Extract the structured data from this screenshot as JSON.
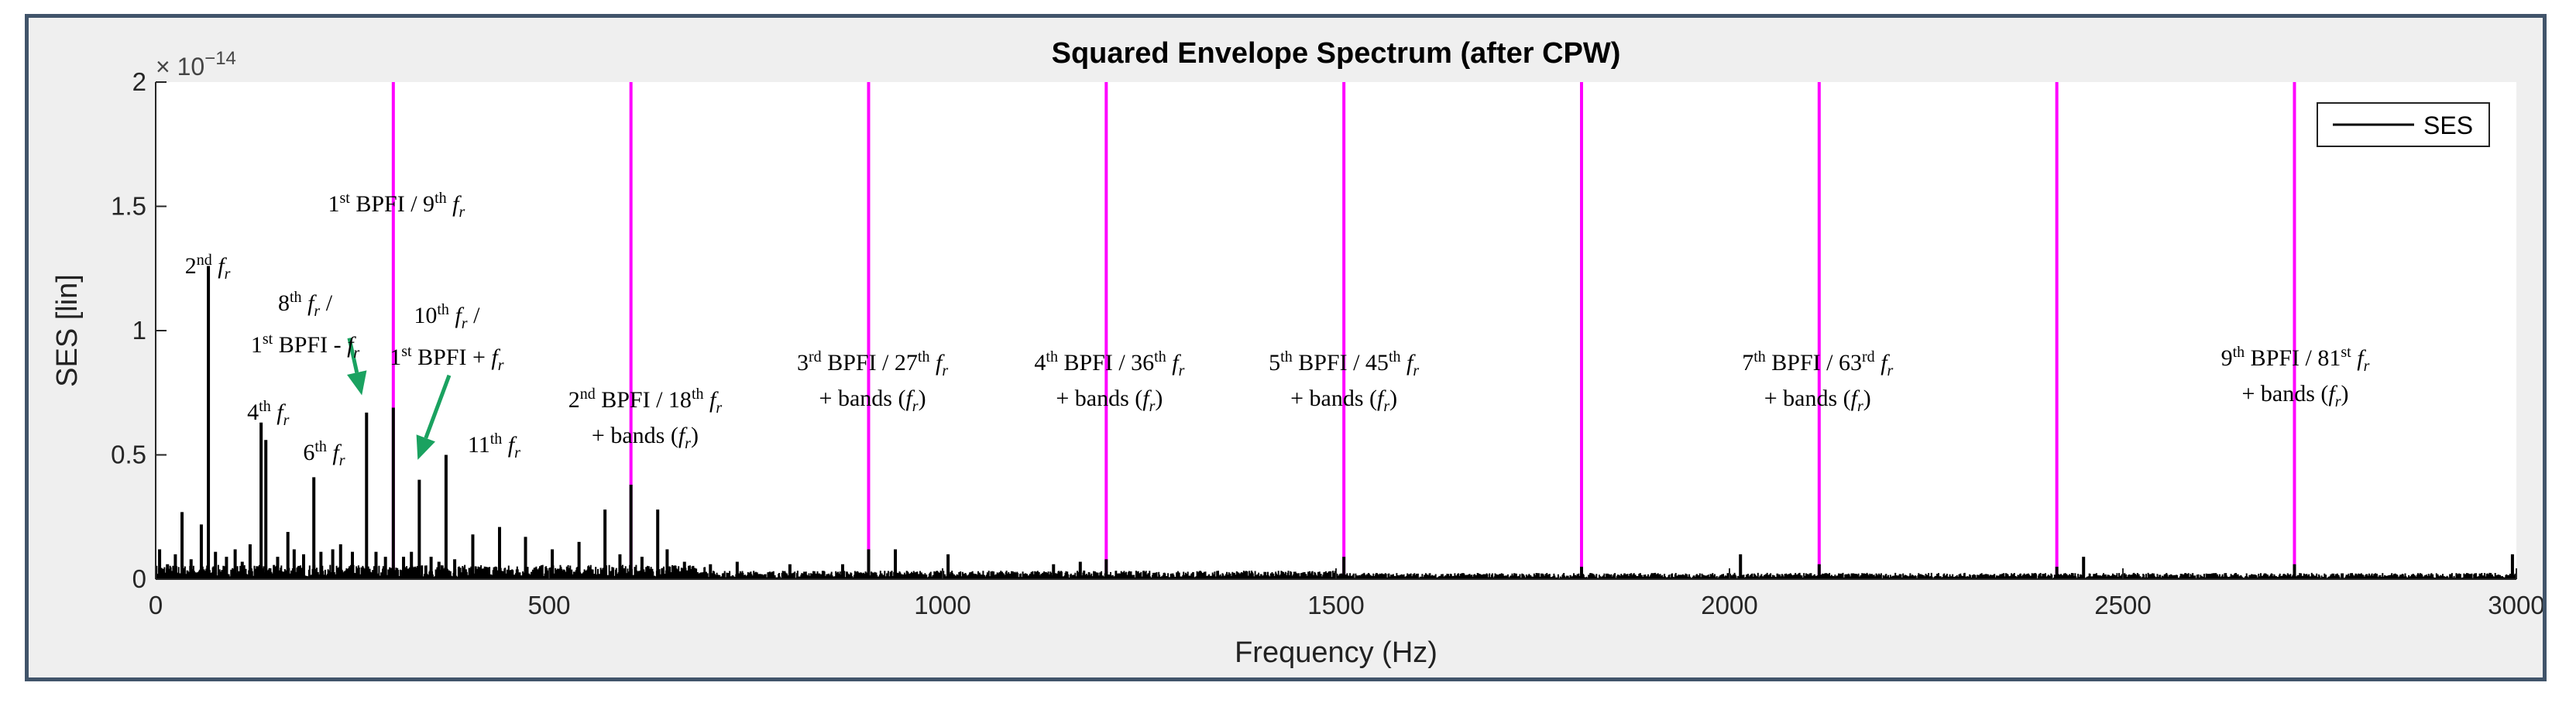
{
  "chart_data": {
    "type": "line",
    "title": "Squared Envelope Spectrum (after CPW)",
    "xlabel": "Frequency (Hz)",
    "ylabel": "SES [lin]",
    "y_exponent": "× 10",
    "y_exponent_power": "−14",
    "xlim": [
      0,
      3000
    ],
    "ylim": [
      0,
      2
    ],
    "x_ticks": [
      0,
      500,
      1000,
      1500,
      2000,
      2500,
      3000
    ],
    "y_ticks": [
      0,
      0.5,
      1,
      1.5,
      2
    ],
    "x_tick_labels": [
      "0",
      "500",
      "1000",
      "1500",
      "2000",
      "2500",
      "3000"
    ],
    "y_tick_labels": [
      "0",
      "0.5",
      "1",
      "1.5",
      "2"
    ],
    "legend": {
      "position": "top-right",
      "label": "SES"
    },
    "series_color": "#000000",
    "marker_color": "#ff00ff",
    "arrow_color": "#1aa260",
    "bpfi_markers_hz": [
      302,
      604,
      906,
      1208,
      1510,
      1812,
      2114,
      2416,
      2718
    ],
    "peaks": [
      {
        "x": 5,
        "y": 0.12
      },
      {
        "x": 15,
        "y": 0.06
      },
      {
        "x": 25,
        "y": 0.1
      },
      {
        "x": 33.5,
        "y": 0.27
      },
      {
        "x": 45,
        "y": 0.08
      },
      {
        "x": 58,
        "y": 0.22
      },
      {
        "x": 67,
        "y": 1.26
      },
      {
        "x": 76,
        "y": 0.11
      },
      {
        "x": 90,
        "y": 0.09
      },
      {
        "x": 101,
        "y": 0.12
      },
      {
        "x": 110,
        "y": 0.07
      },
      {
        "x": 120,
        "y": 0.14
      },
      {
        "x": 134,
        "y": 0.63
      },
      {
        "x": 140,
        "y": 0.56
      },
      {
        "x": 155,
        "y": 0.09
      },
      {
        "x": 168,
        "y": 0.19
      },
      {
        "x": 176,
        "y": 0.12
      },
      {
        "x": 188,
        "y": 0.1
      },
      {
        "x": 201,
        "y": 0.41
      },
      {
        "x": 210,
        "y": 0.11
      },
      {
        "x": 225,
        "y": 0.12
      },
      {
        "x": 235,
        "y": 0.14
      },
      {
        "x": 250,
        "y": 0.11
      },
      {
        "x": 268,
        "y": 0.67
      },
      {
        "x": 280,
        "y": 0.11
      },
      {
        "x": 292,
        "y": 0.09
      },
      {
        "x": 302,
        "y": 0.69
      },
      {
        "x": 315,
        "y": 0.09
      },
      {
        "x": 325,
        "y": 0.11
      },
      {
        "x": 335,
        "y": 0.4
      },
      {
        "x": 350,
        "y": 0.09
      },
      {
        "x": 360,
        "y": 0.07
      },
      {
        "x": 369,
        "y": 0.5
      },
      {
        "x": 380,
        "y": 0.08
      },
      {
        "x": 403,
        "y": 0.18
      },
      {
        "x": 437,
        "y": 0.21
      },
      {
        "x": 470,
        "y": 0.17
      },
      {
        "x": 504,
        "y": 0.12
      },
      {
        "x": 538,
        "y": 0.15
      },
      {
        "x": 571,
        "y": 0.28
      },
      {
        "x": 590,
        "y": 0.1
      },
      {
        "x": 604,
        "y": 0.38
      },
      {
        "x": 618,
        "y": 0.09
      },
      {
        "x": 638,
        "y": 0.28
      },
      {
        "x": 650,
        "y": 0.12
      },
      {
        "x": 672,
        "y": 0.07
      },
      {
        "x": 705,
        "y": 0.06
      },
      {
        "x": 739,
        "y": 0.07
      },
      {
        "x": 806,
        "y": 0.06
      },
      {
        "x": 873,
        "y": 0.06
      },
      {
        "x": 906,
        "y": 0.12
      },
      {
        "x": 940,
        "y": 0.12
      },
      {
        "x": 1007,
        "y": 0.1
      },
      {
        "x": 1141,
        "y": 0.06
      },
      {
        "x": 1175,
        "y": 0.07
      },
      {
        "x": 1208,
        "y": 0.08
      },
      {
        "x": 1510,
        "y": 0.09
      },
      {
        "x": 1812,
        "y": 0.05
      },
      {
        "x": 2014,
        "y": 0.1
      },
      {
        "x": 2114,
        "y": 0.06
      },
      {
        "x": 2416,
        "y": 0.05
      },
      {
        "x": 2450,
        "y": 0.09
      },
      {
        "x": 2718,
        "y": 0.06
      },
      {
        "x": 2995,
        "y": 0.1
      }
    ],
    "annotations": [
      {
        "id": "a1",
        "x": 306,
        "y": 1.59,
        "lines": [
          [
            {
              "t": "1"
            },
            {
              "t": "st",
              "sup": true
            },
            {
              "t": " BPFI / 9"
            },
            {
              "t": "th",
              "sup": true
            },
            {
              "t": " "
            },
            {
              "t": "f",
              "it": true
            },
            {
              "t": "r",
              "sub": true,
              "it": true
            }
          ]
        ]
      },
      {
        "x": 66,
        "y": 1.34,
        "lines": [
          [
            {
              "t": "2"
            },
            {
              "t": "nd",
              "sup": true
            },
            {
              "t": " "
            },
            {
              "t": "f",
              "it": true
            },
            {
              "t": "r",
              "sub": true,
              "it": true
            }
          ]
        ]
      },
      {
        "x": 190,
        "y": 1.19,
        "lines": [
          [
            {
              "t": "8"
            },
            {
              "t": "th",
              "sup": true
            },
            {
              "t": " "
            },
            {
              "t": "f",
              "it": true
            },
            {
              "t": "r",
              "sub": true,
              "it": true
            },
            {
              "t": " /"
            }
          ],
          [
            {
              "t": "1"
            },
            {
              "t": "st",
              "sup": true
            },
            {
              "t": " BPFI - "
            },
            {
              "t": "f",
              "it": true
            },
            {
              "t": "r",
              "sub": true,
              "it": true
            }
          ]
        ]
      },
      {
        "x": 370,
        "y": 1.14,
        "lines": [
          [
            {
              "t": "10"
            },
            {
              "t": "th",
              "sup": true
            },
            {
              "t": " "
            },
            {
              "t": "f",
              "it": true
            },
            {
              "t": "r",
              "sub": true,
              "it": true
            },
            {
              "t": " /"
            }
          ],
          [
            {
              "t": "1"
            },
            {
              "t": "st",
              "sup": true
            },
            {
              "t": " BPFI + "
            },
            {
              "t": "f",
              "it": true
            },
            {
              "t": "r",
              "sub": true,
              "it": true
            }
          ]
        ]
      },
      {
        "x": 143,
        "y": 0.75,
        "lines": [
          [
            {
              "t": "4"
            },
            {
              "t": "th",
              "sup": true
            },
            {
              "t": " "
            },
            {
              "t": "f",
              "it": true
            },
            {
              "t": "r",
              "sub": true,
              "it": true
            }
          ]
        ]
      },
      {
        "x": 214,
        "y": 0.59,
        "lines": [
          [
            {
              "t": "6"
            },
            {
              "t": "th",
              "sup": true
            },
            {
              "t": " "
            },
            {
              "t": "f",
              "it": true
            },
            {
              "t": "r",
              "sub": true,
              "it": true
            }
          ]
        ]
      },
      {
        "x": 430,
        "y": 0.62,
        "lines": [
          [
            {
              "t": "11"
            },
            {
              "t": "th",
              "sup": true
            },
            {
              "t": " "
            },
            {
              "t": "f",
              "it": true
            },
            {
              "t": "r",
              "sub": true,
              "it": true
            }
          ]
        ]
      },
      {
        "x": 622,
        "y": 0.8,
        "lines": [
          [
            {
              "t": "2"
            },
            {
              "t": "nd",
              "sup": true
            },
            {
              "t": " BPFI / 18"
            },
            {
              "t": "th",
              "sup": true
            },
            {
              "t": " "
            },
            {
              "t": "f",
              "it": true
            },
            {
              "t": "r",
              "sub": true,
              "it": true
            }
          ],
          [
            {
              "t": "+ bands ("
            },
            {
              "t": "f",
              "it": true
            },
            {
              "t": "r",
              "sub": true,
              "it": true
            },
            {
              "t": ")"
            }
          ]
        ]
      },
      {
        "x": 911,
        "y": 0.95,
        "lines": [
          [
            {
              "t": "3"
            },
            {
              "t": "rd",
              "sup": true
            },
            {
              "t": " BPFI / 27"
            },
            {
              "t": "th",
              "sup": true
            },
            {
              "t": " "
            },
            {
              "t": "f",
              "it": true
            },
            {
              "t": "r",
              "sub": true,
              "it": true
            }
          ],
          [
            {
              "t": "+ bands ("
            },
            {
              "t": "f",
              "it": true
            },
            {
              "t": "r",
              "sub": true,
              "it": true
            },
            {
              "t": ")"
            }
          ]
        ]
      },
      {
        "x": 1212,
        "y": 0.95,
        "lines": [
          [
            {
              "t": "4"
            },
            {
              "t": "th",
              "sup": true
            },
            {
              "t": " BPFI / 36"
            },
            {
              "t": "th",
              "sup": true
            },
            {
              "t": " "
            },
            {
              "t": "f",
              "it": true
            },
            {
              "t": "r",
              "sub": true,
              "it": true
            }
          ],
          [
            {
              "t": "+ bands ("
            },
            {
              "t": "f",
              "it": true
            },
            {
              "t": "r",
              "sub": true,
              "it": true
            },
            {
              "t": ")"
            }
          ]
        ]
      },
      {
        "x": 1510,
        "y": 0.95,
        "lines": [
          [
            {
              "t": "5"
            },
            {
              "t": "th",
              "sup": true
            },
            {
              "t": " BPFI / 45"
            },
            {
              "t": "th",
              "sup": true
            },
            {
              "t": " "
            },
            {
              "t": "f",
              "it": true
            },
            {
              "t": "r",
              "sub": true,
              "it": true
            }
          ],
          [
            {
              "t": "+ bands ("
            },
            {
              "t": "f",
              "it": true
            },
            {
              "t": "r",
              "sub": true,
              "it": true
            },
            {
              "t": ")"
            }
          ]
        ]
      },
      {
        "x": 2112,
        "y": 0.95,
        "lines": [
          [
            {
              "t": "7"
            },
            {
              "t": "th",
              "sup": true
            },
            {
              "t": " BPFI / 63"
            },
            {
              "t": "rd",
              "sup": true
            },
            {
              "t": " "
            },
            {
              "t": "f",
              "it": true
            },
            {
              "t": "r",
              "sub": true,
              "it": true
            }
          ],
          [
            {
              "t": "+ bands ("
            },
            {
              "t": "f",
              "it": true
            },
            {
              "t": "r",
              "sub": true,
              "it": true
            },
            {
              "t": ")"
            }
          ]
        ]
      },
      {
        "x": 2719,
        "y": 0.97,
        "lines": [
          [
            {
              "t": "9"
            },
            {
              "t": "th",
              "sup": true
            },
            {
              "t": " BPFI / 81"
            },
            {
              "t": "st",
              "sup": true
            },
            {
              "t": " "
            },
            {
              "t": "f",
              "it": true
            },
            {
              "t": "r",
              "sub": true,
              "it": true
            }
          ],
          [
            {
              "t": "+ bands ("
            },
            {
              "t": "f",
              "it": true
            },
            {
              "t": "r",
              "sub": true,
              "it": true
            },
            {
              "t": ")"
            }
          ]
        ]
      }
    ],
    "arrows": [
      {
        "from": [
          246,
          0.97
        ],
        "to": [
          262,
          0.74
        ]
      },
      {
        "from": [
          373,
          0.82
        ],
        "to": [
          333,
          0.48
        ]
      }
    ]
  }
}
